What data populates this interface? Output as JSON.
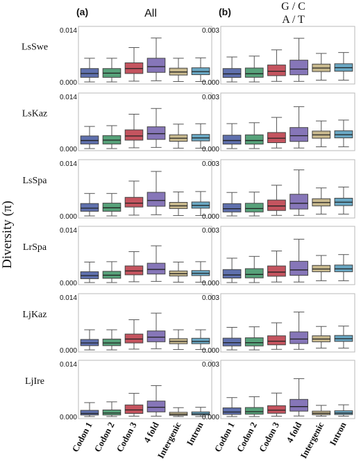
{
  "chart_data": {
    "type": "box",
    "ylabel": "Diversity (π)",
    "categories": [
      "Codon 1",
      "Codon 2",
      "Codon 3",
      "4 fold",
      "Intergenic",
      "Intron"
    ],
    "category_colors": [
      "#5f70ad",
      "#57a27a",
      "#c4545f",
      "#8676b8",
      "#c8b98e",
      "#6aa8c4"
    ],
    "grid": false,
    "populations": [
      "LsSwe",
      "LsKaz",
      "LsSpa",
      "LrSpa",
      "LjKaz",
      "LjIre"
    ],
    "columns": [
      {
        "letter": "(a)",
        "title": "All",
        "ylim": [
          0,
          0.014
        ],
        "ytick_labels": [
          "0.000",
          "0.014"
        ],
        "panels": [
          {
            "population": "LsSwe",
            "boxes": [
              [
                0.0,
                0.0012,
                0.0022,
                0.0035,
                0.0062
              ],
              [
                0.0,
                0.0012,
                0.0023,
                0.0035,
                0.0062
              ],
              [
                0.0002,
                0.0022,
                0.0035,
                0.005,
                0.009
              ],
              [
                0.0003,
                0.0025,
                0.004,
                0.0062,
                0.0115
              ],
              [
                0.0001,
                0.0018,
                0.0026,
                0.0036,
                0.0062
              ],
              [
                0.0001,
                0.0019,
                0.0027,
                0.0037,
                0.0063
              ]
            ]
          },
          {
            "population": "LsKaz",
            "boxes": [
              [
                0.0,
                0.0012,
                0.0021,
                0.0033,
                0.0058
              ],
              [
                0.0,
                0.0012,
                0.0022,
                0.0034,
                0.006
              ],
              [
                0.0002,
                0.0022,
                0.0033,
                0.0049,
                0.009
              ],
              [
                0.0003,
                0.0024,
                0.0039,
                0.0057,
                0.0105
              ],
              [
                0.0001,
                0.0019,
                0.0027,
                0.0036,
                0.0064
              ],
              [
                0.0001,
                0.002,
                0.0028,
                0.0037,
                0.0065
              ]
            ]
          },
          {
            "population": "LsSpa",
            "boxes": [
              [
                0.0,
                0.0012,
                0.002,
                0.0032,
                0.0058
              ],
              [
                0.0,
                0.0012,
                0.0021,
                0.0033,
                0.0058
              ],
              [
                0.0002,
                0.0023,
                0.0033,
                0.0048,
                0.009
              ],
              [
                0.0003,
                0.0025,
                0.004,
                0.0061,
                0.0115
              ],
              [
                0.0001,
                0.0019,
                0.0026,
                0.0035,
                0.0062
              ],
              [
                0.0001,
                0.002,
                0.0027,
                0.0036,
                0.0063
              ]
            ]
          },
          {
            "population": "LrSpa",
            "boxes": [
              [
                0.0,
                0.001,
                0.0018,
                0.0028,
                0.0053
              ],
              [
                0.0,
                0.0011,
                0.0019,
                0.0029,
                0.0054
              ],
              [
                0.0002,
                0.002,
                0.003,
                0.0043,
                0.008
              ],
              [
                0.0003,
                0.0022,
                0.0034,
                0.005,
                0.0095
              ],
              [
                0.0001,
                0.0017,
                0.0023,
                0.003,
                0.0053
              ],
              [
                0.0001,
                0.0018,
                0.0024,
                0.0031,
                0.0054
              ]
            ]
          },
          {
            "population": "LjKaz",
            "boxes": [
              [
                0.0,
                0.0011,
                0.0018,
                0.0027,
                0.0052
              ],
              [
                0.0,
                0.0011,
                0.0018,
                0.0028,
                0.0052
              ],
              [
                0.0002,
                0.0018,
                0.0028,
                0.0041,
                0.0078
              ],
              [
                0.0003,
                0.0021,
                0.0033,
                0.0049,
                0.0095
              ],
              [
                0.0001,
                0.0016,
                0.0022,
                0.0029,
                0.0052
              ],
              [
                0.0001,
                0.0016,
                0.0022,
                0.003,
                0.0052
              ]
            ]
          },
          {
            "population": "LjIre",
            "boxes": [
              [
                0.0,
                0.0004,
                0.0008,
                0.0016,
                0.0036
              ],
              [
                0.0,
                0.0004,
                0.0009,
                0.0017,
                0.0038
              ],
              [
                0.0001,
                0.0008,
                0.0017,
                0.003,
                0.006
              ],
              [
                0.0001,
                0.0012,
                0.0024,
                0.004,
                0.008
              ],
              [
                0.0,
                0.0003,
                0.0006,
                0.0011,
                0.0023
              ],
              [
                0.0,
                0.0004,
                0.0007,
                0.0012,
                0.0024
              ]
            ]
          }
        ]
      },
      {
        "letter": "(b)",
        "title": "G / C\nA / T",
        "ylim": [
          0,
          0.003
        ],
        "ytick_labels": [
          "0.000",
          "0.003"
        ],
        "panels": [
          {
            "population": "LsSwe",
            "boxes": [
              [
                0.0,
                0.00025,
                0.00045,
                0.00075,
                0.0014
              ],
              [
                0.0,
                0.00026,
                0.00046,
                0.00078,
                0.00145
              ],
              [
                3e-05,
                0.00035,
                0.0006,
                0.00095,
                0.0018
              ],
              [
                3e-05,
                0.0004,
                0.00072,
                0.00122,
                0.00245
              ],
              [
                0.0001,
                0.00058,
                0.00078,
                0.001,
                0.0016
              ],
              [
                0.0001,
                0.0006,
                0.0008,
                0.00102,
                0.00165
              ]
            ]
          },
          {
            "population": "LsKaz",
            "boxes": [
              [
                0.0,
                0.00025,
                0.00045,
                0.00075,
                0.0014
              ],
              [
                0.0,
                0.00025,
                0.00045,
                0.00077,
                0.00145
              ],
              [
                3e-05,
                0.00033,
                0.00058,
                0.0009,
                0.00175
              ],
              [
                3e-05,
                0.0004,
                0.00072,
                0.00118,
                0.00235
              ],
              [
                0.0001,
                0.00058,
                0.00077,
                0.00098,
                0.00155
              ],
              [
                0.0001,
                0.0006,
                0.00078,
                0.001,
                0.0016
              ]
            ]
          },
          {
            "population": "LsSpa",
            "boxes": [
              [
                0.0,
                0.00022,
                0.0004,
                0.00068,
                0.0013
              ],
              [
                0.0,
                0.00022,
                0.00041,
                0.0007,
                0.00132
              ],
              [
                3e-05,
                0.0003,
                0.00055,
                0.00088,
                0.0017
              ],
              [
                3e-05,
                0.00038,
                0.0007,
                0.0012,
                0.00255
              ],
              [
                0.0001,
                0.00055,
                0.00074,
                0.00095,
                0.00155
              ],
              [
                0.0001,
                0.00057,
                0.00076,
                0.00098,
                0.0016
              ]
            ]
          },
          {
            "population": "LrSpa",
            "boxes": [
              [
                0.0,
                0.00025,
                0.00042,
                0.00072,
                0.00135
              ],
              [
                0.0,
                0.00026,
                0.00045,
                0.00077,
                0.00145
              ],
              [
                3e-05,
                0.00035,
                0.00058,
                0.00092,
                0.00175
              ],
              [
                3e-05,
                0.0004,
                0.0007,
                0.00118,
                0.0024
              ],
              [
                0.0001,
                0.0006,
                0.00075,
                0.00095,
                0.0015
              ],
              [
                0.0001,
                0.0006,
                0.00076,
                0.00097,
                0.00155
              ]
            ]
          },
          {
            "population": "LjKaz",
            "boxes": [
              [
                0.0,
                0.00022,
                0.0004,
                0.00065,
                0.00125
              ],
              [
                0.0,
                0.00022,
                0.0004,
                0.00067,
                0.00128
              ],
              [
                3e-05,
                0.00028,
                0.00048,
                0.00078,
                0.0015
              ],
              [
                3e-05,
                0.00035,
                0.0006,
                0.001,
                0.0021
              ],
              [
                0.0001,
                0.00045,
                0.0006,
                0.00078,
                0.0013
              ],
              [
                0.0001,
                0.00047,
                0.00062,
                0.0008,
                0.00132
              ]
            ]
          },
          {
            "population": "LjIre",
            "boxes": [
              [
                0.0,
                0.00012,
                0.00025,
                0.00048,
                0.00105
              ],
              [
                0.0,
                0.00013,
                0.00027,
                0.0005,
                0.0011
              ],
              [
                2e-05,
                0.00018,
                0.00035,
                0.0006,
                0.0013
              ],
              [
                3e-05,
                0.0003,
                0.00055,
                0.00095,
                0.0021
              ],
              [
                2e-05,
                0.0001,
                0.00018,
                0.0003,
                0.00062
              ],
              [
                2e-05,
                0.00011,
                0.00019,
                0.00032,
                0.00065
              ]
            ]
          }
        ]
      }
    ]
  }
}
